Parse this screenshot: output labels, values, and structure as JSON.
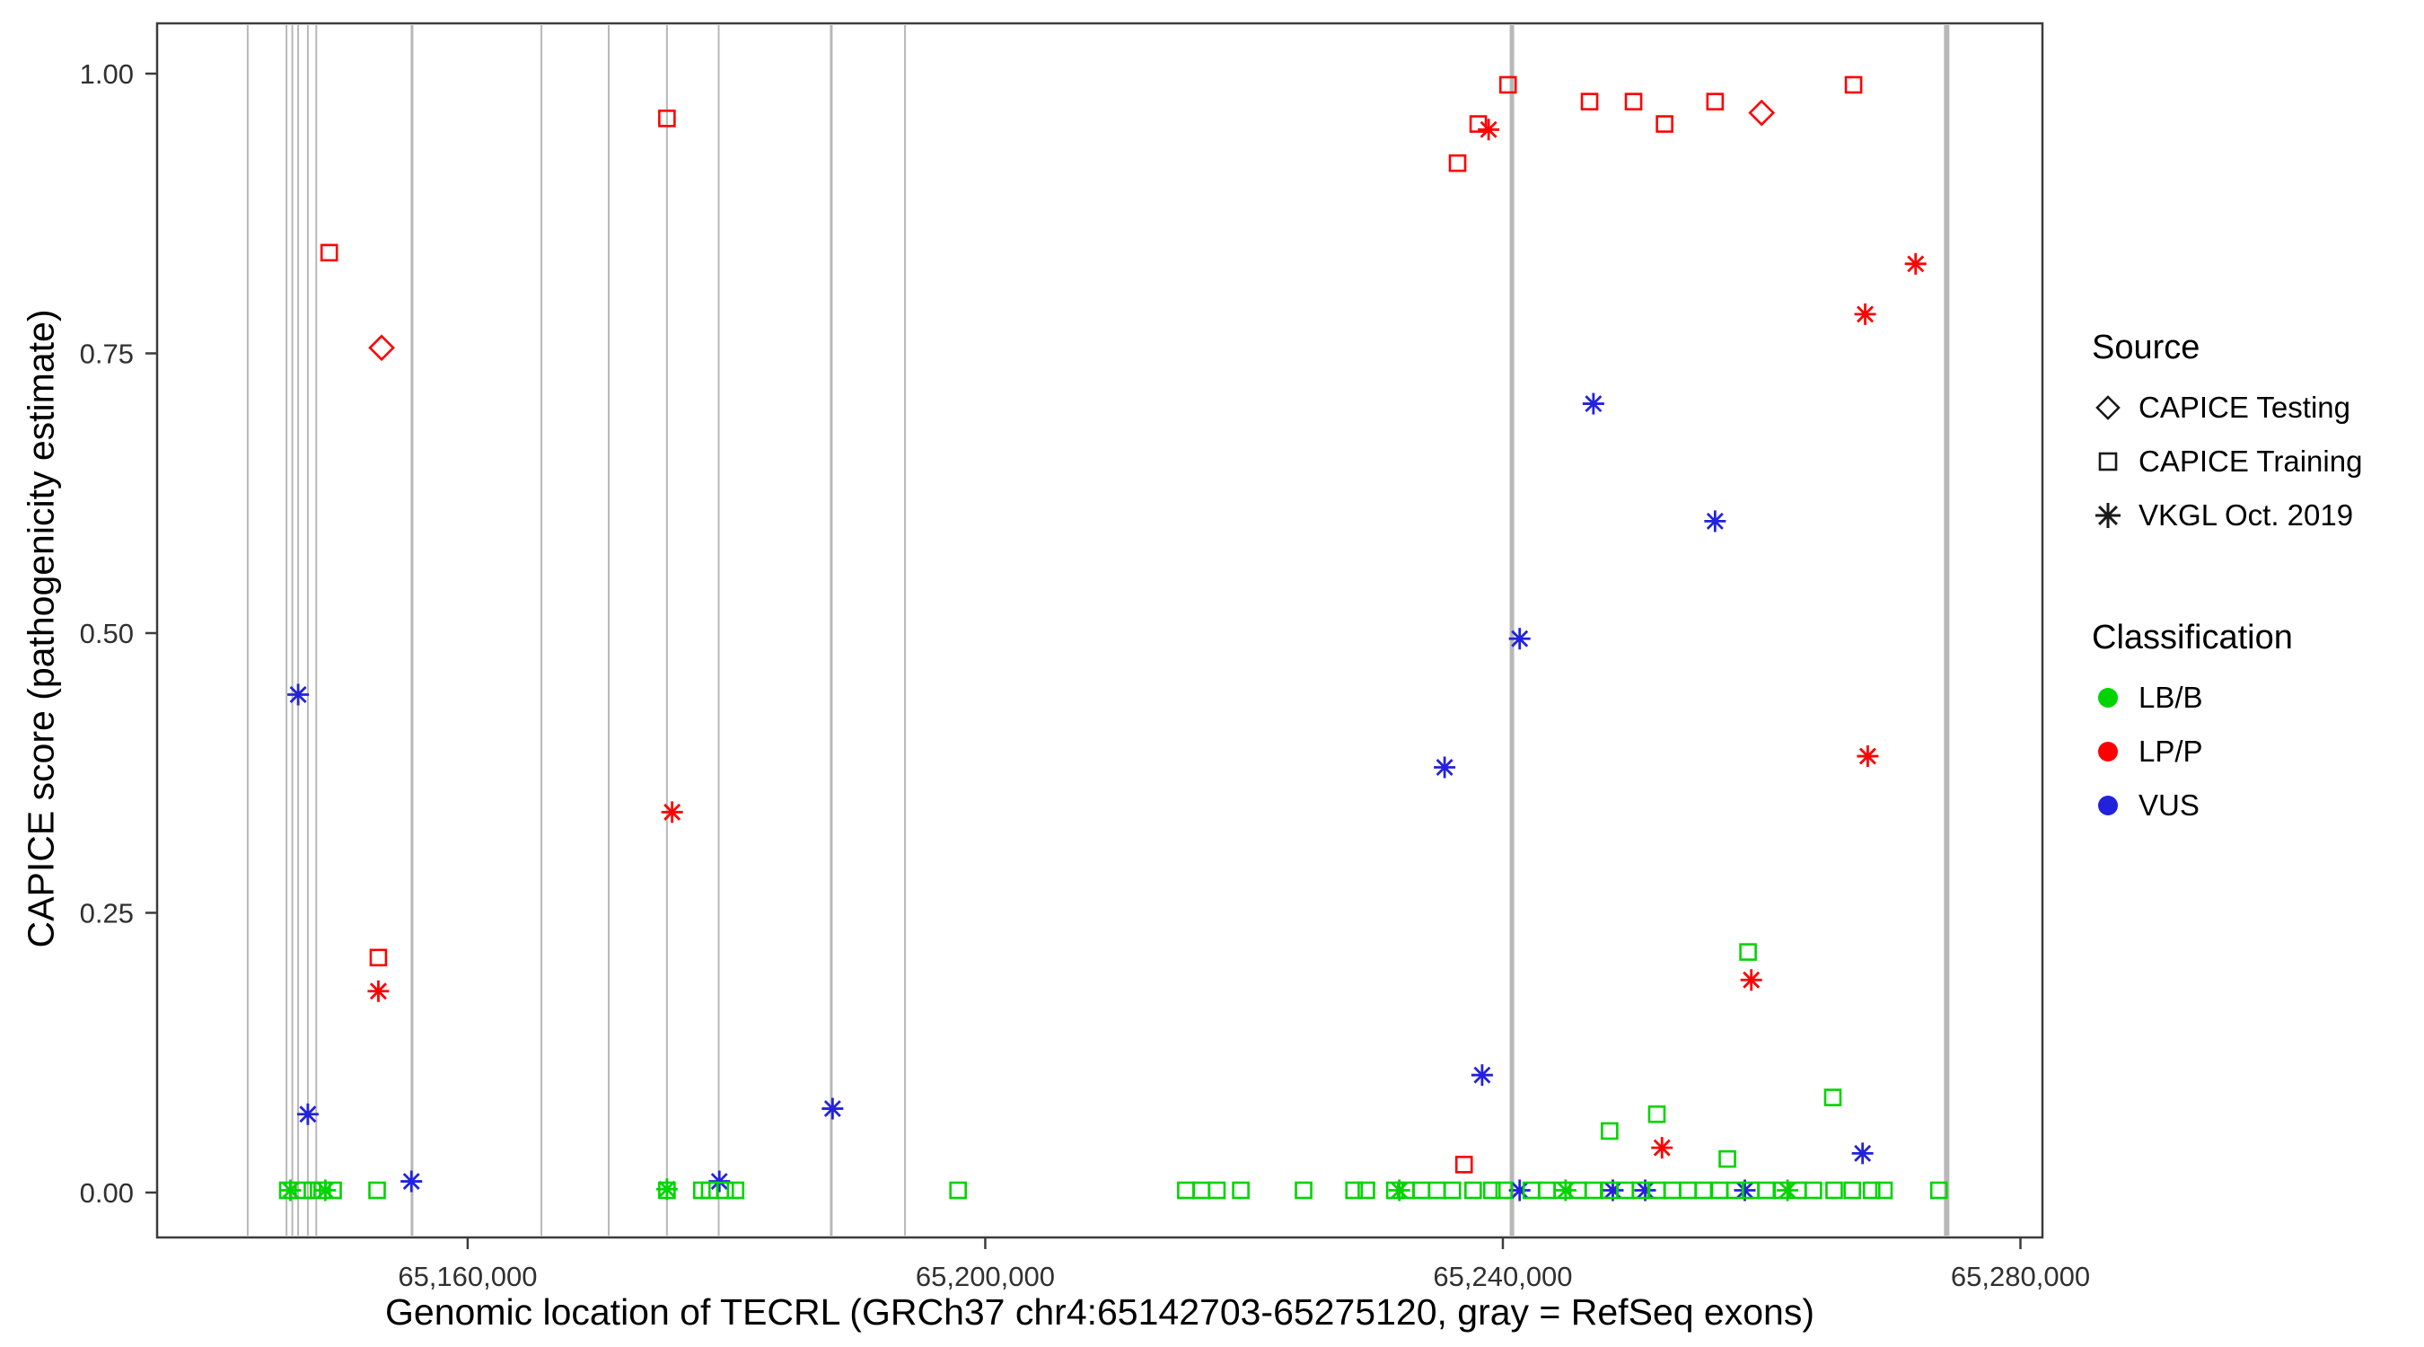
{
  "chart_data": {
    "type": "scatter",
    "title": "",
    "xlabel": "Genomic location of TECRL (GRCh37 chr4:65142703-65275120, gray = RefSeq exons)",
    "ylabel": "CAPICE score (pathogenicity estimate)",
    "x_domain": [
      65136000,
      65281700
    ],
    "y_domain": [
      0,
      1.0
    ],
    "grid": false,
    "legend_position": "right",
    "x_ticks": [
      {
        "value": 65160000,
        "label": "65,160,000"
      },
      {
        "value": 65200000,
        "label": "65,200,000"
      },
      {
        "value": 65240000,
        "label": "65,240,000"
      },
      {
        "value": 65280000,
        "label": "65,280,000"
      }
    ],
    "y_ticks": [
      {
        "value": 0.0,
        "label": "0.00"
      },
      {
        "value": 0.25,
        "label": "0.25"
      },
      {
        "value": 0.5,
        "label": "0.50"
      },
      {
        "value": 0.75,
        "label": "0.75"
      },
      {
        "value": 1.0,
        "label": "1.00"
      }
    ],
    "colors": {
      "LB/B": "#00d400",
      "LP/P": "#ff0000",
      "VUS": "#2222dd",
      "exon": "#b8b8b8"
    },
    "shapes": {
      "CAPICE Testing": "diamond",
      "CAPICE Training": "square",
      "VKGL Oct. 2019": "asterisk"
    },
    "codes": {
      "sources": {
        "T": "CAPICE Testing",
        "R": "CAPICE Training",
        "V": "VKGL Oct. 2019"
      },
      "classes": {
        "B": "LB/B",
        "P": "LP/P",
        "U": "VUS"
      }
    },
    "exon_note": "gray vertical lines = RefSeq exons",
    "exon_lines": [
      {
        "x": 65143000,
        "w": 2
      },
      {
        "x": 65146000,
        "w": 2
      },
      {
        "x": 65146450,
        "w": 2
      },
      {
        "x": 65146900,
        "w": 2
      },
      {
        "x": 65147650,
        "w": 2
      },
      {
        "x": 65148300,
        "w": 2
      },
      {
        "x": 65155700,
        "w": 3
      },
      {
        "x": 65165700,
        "w": 2
      },
      {
        "x": 65170900,
        "w": 2
      },
      {
        "x": 65175400,
        "w": 2
      },
      {
        "x": 65179400,
        "w": 2
      },
      {
        "x": 65188100,
        "w": 3
      },
      {
        "x": 65193800,
        "w": 2
      },
      {
        "x": 65240700,
        "w": 5
      },
      {
        "x": 65274300,
        "w": 6
      }
    ],
    "point_format": [
      "genomic_position",
      "capice_score",
      "source_code",
      "class_code"
    ],
    "points": [
      [
        65149300,
        0.84,
        "R",
        "P"
      ],
      [
        65153100,
        0.21,
        "R",
        "P"
      ],
      [
        65175400,
        0.96,
        "R",
        "P"
      ],
      [
        65236500,
        0.92,
        "R",
        "P"
      ],
      [
        65238100,
        0.955,
        "R",
        "P"
      ],
      [
        65240400,
        0.99,
        "R",
        "P"
      ],
      [
        65246700,
        0.975,
        "R",
        "P"
      ],
      [
        65250100,
        0.975,
        "R",
        "P"
      ],
      [
        65252500,
        0.955,
        "R",
        "P"
      ],
      [
        65256400,
        0.975,
        "R",
        "P"
      ],
      [
        65267100,
        0.99,
        "R",
        "P"
      ],
      [
        65237000,
        0.025,
        "R",
        "P"
      ],
      [
        65153350,
        0.755,
        "T",
        "P"
      ],
      [
        65260000,
        0.965,
        "T",
        "P"
      ],
      [
        65153100,
        0.18,
        "V",
        "P"
      ],
      [
        65175800,
        0.34,
        "V",
        "P"
      ],
      [
        65238900,
        0.95,
        "V",
        "P"
      ],
      [
        65268000,
        0.785,
        "V",
        "P"
      ],
      [
        65271900,
        0.83,
        "V",
        "P"
      ],
      [
        65268200,
        0.39,
        "V",
        "P"
      ],
      [
        65259200,
        0.19,
        "V",
        "P"
      ],
      [
        65252300,
        0.04,
        "V",
        "P"
      ],
      [
        65146900,
        0.445,
        "V",
        "U"
      ],
      [
        65147650,
        0.07,
        "V",
        "U"
      ],
      [
        65155650,
        0.01,
        "V",
        "U"
      ],
      [
        65179450,
        0.01,
        "V",
        "U"
      ],
      [
        65188200,
        0.075,
        "V",
        "U"
      ],
      [
        65235500,
        0.38,
        "V",
        "U"
      ],
      [
        65238400,
        0.105,
        "V",
        "U"
      ],
      [
        65241300,
        0.495,
        "V",
        "U"
      ],
      [
        65247000,
        0.705,
        "V",
        "U"
      ],
      [
        65256400,
        0.6,
        "V",
        "U"
      ],
      [
        65267800,
        0.035,
        "V",
        "U"
      ],
      [
        65241300,
        0.002,
        "V",
        "U"
      ],
      [
        65248500,
        0.002,
        "V",
        "U"
      ],
      [
        65251000,
        0.002,
        "V",
        "U"
      ],
      [
        65258700,
        0.002,
        "V",
        "U"
      ],
      [
        65146300,
        0.002,
        "V",
        "B"
      ],
      [
        65149000,
        0.002,
        "V",
        "B"
      ],
      [
        65175400,
        0.003,
        "V",
        "B"
      ],
      [
        65232000,
        0.002,
        "V",
        "B"
      ],
      [
        65244850,
        0.002,
        "V",
        "B"
      ],
      [
        65262000,
        0.002,
        "V",
        "B"
      ],
      [
        65248250,
        0.055,
        "R",
        "B"
      ],
      [
        65251900,
        0.07,
        "R",
        "B"
      ],
      [
        65258950,
        0.215,
        "R",
        "B"
      ],
      [
        65257350,
        0.03,
        "R",
        "B"
      ],
      [
        65265500,
        0.085,
        "R",
        "B"
      ],
      [
        65146100,
        0.002,
        "R",
        "B"
      ],
      [
        65147300,
        0.002,
        "R",
        "B"
      ],
      [
        65148000,
        0.002,
        "R",
        "B"
      ],
      [
        65148750,
        0.002,
        "R",
        "B"
      ],
      [
        65149600,
        0.002,
        "R",
        "B"
      ],
      [
        65153000,
        0.002,
        "R",
        "B"
      ],
      [
        65175400,
        0.002,
        "R",
        "B"
      ],
      [
        65178100,
        0.002,
        "R",
        "B"
      ],
      [
        65178700,
        0.002,
        "R",
        "B"
      ],
      [
        65179900,
        0.002,
        "R",
        "B"
      ],
      [
        65180700,
        0.002,
        "R",
        "B"
      ],
      [
        65197900,
        0.002,
        "R",
        "B"
      ],
      [
        65215500,
        0.002,
        "R",
        "B"
      ],
      [
        65216700,
        0.002,
        "R",
        "B"
      ],
      [
        65217900,
        0.002,
        "R",
        "B"
      ],
      [
        65219750,
        0.002,
        "R",
        "B"
      ],
      [
        65224600,
        0.002,
        "R",
        "B"
      ],
      [
        65228500,
        0.002,
        "R",
        "B"
      ],
      [
        65229450,
        0.002,
        "R",
        "B"
      ],
      [
        65231650,
        0.002,
        "R",
        "B"
      ],
      [
        65232500,
        0.002,
        "R",
        "B"
      ],
      [
        65233700,
        0.002,
        "R",
        "B"
      ],
      [
        65234900,
        0.002,
        "R",
        "B"
      ],
      [
        65236100,
        0.002,
        "R",
        "B"
      ],
      [
        65237700,
        0.002,
        "R",
        "B"
      ],
      [
        65239150,
        0.002,
        "R",
        "B"
      ],
      [
        65240100,
        0.002,
        "R",
        "B"
      ],
      [
        65242200,
        0.002,
        "R",
        "B"
      ],
      [
        65243400,
        0.002,
        "R",
        "B"
      ],
      [
        65244600,
        0.002,
        "R",
        "B"
      ],
      [
        65245800,
        0.002,
        "R",
        "B"
      ],
      [
        65247000,
        0.002,
        "R",
        "B"
      ],
      [
        65248250,
        0.002,
        "R",
        "B"
      ],
      [
        65249450,
        0.002,
        "R",
        "B"
      ],
      [
        65250650,
        0.002,
        "R",
        "B"
      ],
      [
        65251900,
        0.002,
        "R",
        "B"
      ],
      [
        65253100,
        0.002,
        "R",
        "B"
      ],
      [
        65254300,
        0.002,
        "R",
        "B"
      ],
      [
        65255500,
        0.002,
        "R",
        "B"
      ],
      [
        65256750,
        0.002,
        "R",
        "B"
      ],
      [
        65257950,
        0.002,
        "R",
        "B"
      ],
      [
        65259150,
        0.002,
        "R",
        "B"
      ],
      [
        65260350,
        0.002,
        "R",
        "B"
      ],
      [
        65261600,
        0.002,
        "R",
        "B"
      ],
      [
        65262800,
        0.002,
        "R",
        "B"
      ],
      [
        65264000,
        0.002,
        "R",
        "B"
      ],
      [
        65265600,
        0.002,
        "R",
        "B"
      ],
      [
        65267000,
        0.002,
        "R",
        "B"
      ],
      [
        65268500,
        0.002,
        "R",
        "B"
      ],
      [
        65269450,
        0.002,
        "R",
        "B"
      ],
      [
        65273700,
        0.002,
        "R",
        "B"
      ]
    ]
  },
  "legend": {
    "source": {
      "title": "Source",
      "items": [
        {
          "label": "CAPICE Testing",
          "shape": "diamond"
        },
        {
          "label": "CAPICE Training",
          "shape": "square"
        },
        {
          "label": "VKGL Oct. 2019",
          "shape": "asterisk"
        }
      ]
    },
    "classification": {
      "title": "Classification",
      "items": [
        {
          "label": "LB/B",
          "color": "#00d400"
        },
        {
          "label": "LP/P",
          "color": "#ff0000"
        },
        {
          "label": "VUS",
          "color": "#2222dd"
        }
      ]
    }
  }
}
